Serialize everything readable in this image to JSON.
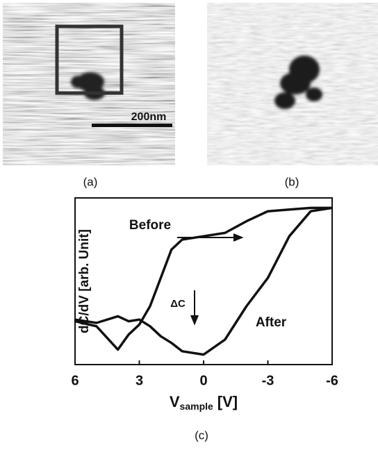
{
  "panels": {
    "a": {
      "label": "(a)",
      "scale_bar": "200nm"
    },
    "b": {
      "label": "(b)"
    }
  },
  "chart_data": {
    "type": "line",
    "panel_label": "(c)",
    "y_label": "dC/dV [arb. Unit]",
    "x_label": {
      "main": "V",
      "sub": "sample",
      "unit": "[V]"
    },
    "xlim": [
      6,
      -6
    ],
    "xticks": [
      6,
      3,
      0,
      -3,
      -6
    ],
    "ylim": [
      0,
      1
    ],
    "x": [
      6,
      5,
      4,
      3.5,
      3,
      2.5,
      2,
      1.5,
      1,
      0,
      -1,
      -2,
      -3,
      -4,
      -5,
      -6
    ],
    "series": [
      {
        "name": "Before",
        "color": "#111111",
        "values": [
          0.26,
          0.23,
          0.09,
          0.18,
          0.24,
          0.35,
          0.52,
          0.69,
          0.75,
          0.77,
          0.79,
          0.86,
          0.92,
          0.93,
          0.94,
          0.94
        ]
      },
      {
        "name": "After",
        "color": "#111111",
        "values": [
          0.27,
          0.25,
          0.29,
          0.26,
          0.27,
          0.23,
          0.17,
          0.13,
          0.08,
          0.06,
          0.15,
          0.35,
          0.52,
          0.77,
          0.92,
          0.94
        ]
      }
    ],
    "annotation": "ΔC"
  }
}
